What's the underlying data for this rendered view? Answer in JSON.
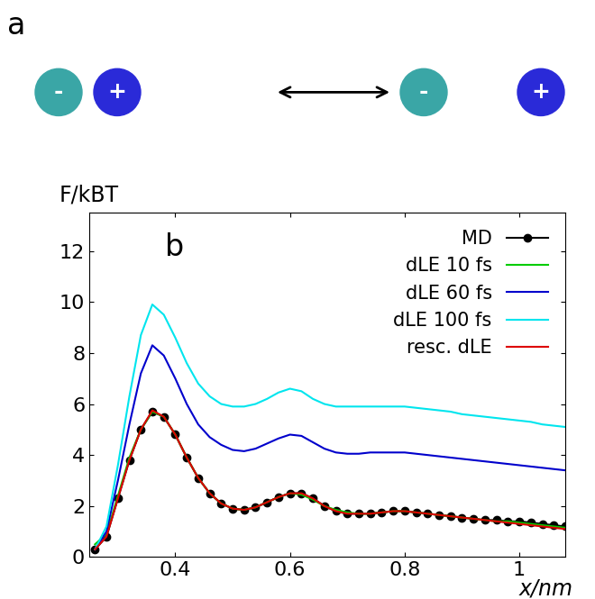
{
  "diagram": {
    "label": "a",
    "states": [
      {
        "anion": "-",
        "cation": "+"
      },
      {
        "anion": "-",
        "cation": "+"
      }
    ]
  },
  "chart_data": {
    "type": "line",
    "annotations": [
      "b"
    ],
    "x_label": "x/nm",
    "y_label": "F/kBT",
    "xlim": [
      0.25,
      1.08
    ],
    "ylim": [
      0,
      13.5
    ],
    "xticks": [
      0.4,
      0.6,
      0.8,
      1
    ],
    "yticks": [
      0,
      2,
      4,
      6,
      8,
      10,
      12
    ],
    "legend": "upper right",
    "grid": false,
    "x": [
      0.26,
      0.28,
      0.3,
      0.32,
      0.34,
      0.36,
      0.38,
      0.4,
      0.42,
      0.44,
      0.46,
      0.48,
      0.5,
      0.52,
      0.54,
      0.56,
      0.58,
      0.6,
      0.62,
      0.64,
      0.66,
      0.68,
      0.7,
      0.72,
      0.74,
      0.76,
      0.78,
      0.8,
      0.82,
      0.84,
      0.86,
      0.88,
      0.9,
      0.92,
      0.94,
      0.96,
      0.98,
      1.0,
      1.02,
      1.04,
      1.06,
      1.08
    ],
    "series": [
      {
        "name": "MD",
        "color": "#000000",
        "marker": "o",
        "line_style": "solid",
        "values": [
          0.3,
          0.8,
          2.3,
          3.8,
          5.0,
          5.7,
          5.5,
          4.8,
          3.9,
          3.1,
          2.5,
          2.1,
          1.9,
          1.85,
          1.95,
          2.15,
          2.35,
          2.5,
          2.5,
          2.3,
          2.0,
          1.8,
          1.7,
          1.7,
          1.7,
          1.75,
          1.8,
          1.8,
          1.75,
          1.7,
          1.65,
          1.6,
          1.55,
          1.5,
          1.45,
          1.45,
          1.4,
          1.4,
          1.35,
          1.3,
          1.25,
          1.2
        ]
      },
      {
        "name": "dLE 10 fs",
        "color": "#00cc00",
        "line_style": "solid",
        "values": [
          0.5,
          0.9,
          2.4,
          3.9,
          5.0,
          5.7,
          5.5,
          4.8,
          3.9,
          3.1,
          2.5,
          2.1,
          1.9,
          1.85,
          1.95,
          2.15,
          2.35,
          2.5,
          2.45,
          2.25,
          2.0,
          1.85,
          1.75,
          1.7,
          1.7,
          1.75,
          1.8,
          1.8,
          1.75,
          1.7,
          1.65,
          1.6,
          1.55,
          1.5,
          1.45,
          1.4,
          1.4,
          1.35,
          1.3,
          1.25,
          1.2,
          1.15
        ]
      },
      {
        "name": "dLE 60 fs",
        "color": "#0000cc",
        "line_style": "solid",
        "values": [
          0.3,
          1.0,
          3.0,
          5.2,
          7.2,
          8.3,
          7.9,
          7.0,
          6.0,
          5.2,
          4.7,
          4.4,
          4.2,
          4.15,
          4.25,
          4.45,
          4.65,
          4.8,
          4.75,
          4.5,
          4.25,
          4.1,
          4.05,
          4.05,
          4.1,
          4.1,
          4.1,
          4.1,
          4.05,
          4.0,
          3.95,
          3.9,
          3.85,
          3.8,
          3.75,
          3.7,
          3.65,
          3.6,
          3.55,
          3.5,
          3.45,
          3.4
        ]
      },
      {
        "name": "dLE 100 fs",
        "color": "#00e5ee",
        "line_style": "solid",
        "values": [
          0.3,
          1.2,
          3.6,
          6.3,
          8.7,
          9.9,
          9.5,
          8.6,
          7.6,
          6.8,
          6.3,
          6.0,
          5.9,
          5.9,
          6.0,
          6.2,
          6.45,
          6.6,
          6.5,
          6.2,
          6.0,
          5.9,
          5.9,
          5.9,
          5.9,
          5.9,
          5.9,
          5.9,
          5.85,
          5.8,
          5.75,
          5.7,
          5.6,
          5.55,
          5.5,
          5.45,
          5.4,
          5.35,
          5.3,
          5.2,
          5.15,
          5.1
        ]
      },
      {
        "name": "resc. dLE",
        "color": "#dd0000",
        "line_style": "solid",
        "values": [
          0.3,
          0.8,
          2.3,
          3.8,
          5.0,
          5.75,
          5.5,
          4.8,
          3.9,
          3.1,
          2.5,
          2.1,
          1.9,
          1.85,
          1.95,
          2.15,
          2.35,
          2.5,
          2.5,
          2.3,
          2.0,
          1.8,
          1.7,
          1.7,
          1.7,
          1.75,
          1.8,
          1.8,
          1.75,
          1.7,
          1.65,
          1.6,
          1.55,
          1.5,
          1.45,
          1.4,
          1.35,
          1.3,
          1.25,
          1.2,
          1.15,
          1.1
        ]
      }
    ]
  }
}
